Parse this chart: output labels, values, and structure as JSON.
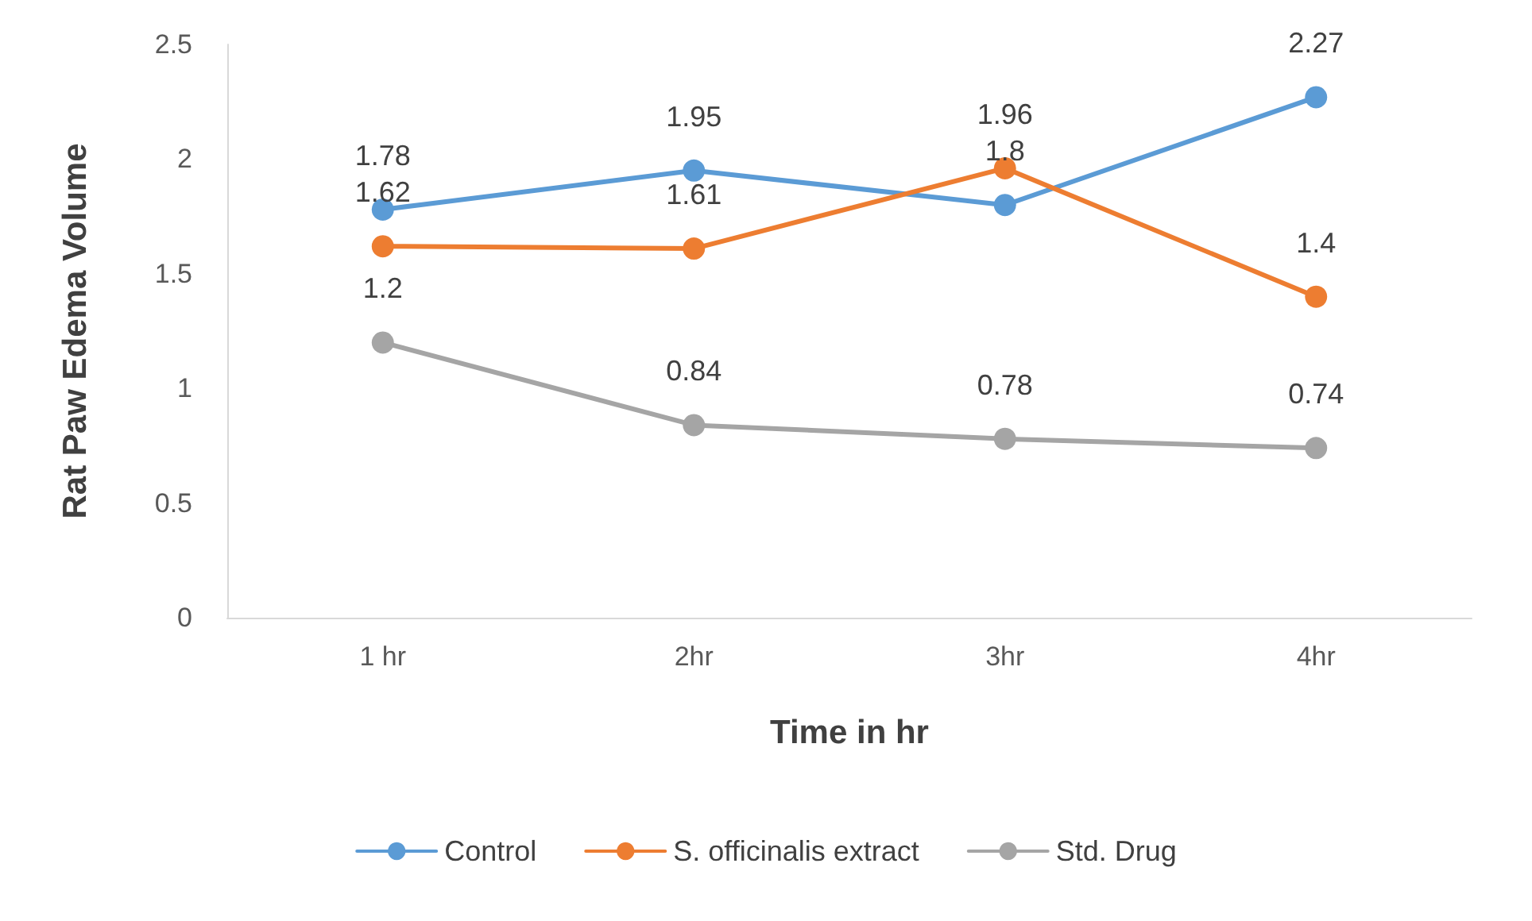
{
  "chart_data": {
    "type": "line",
    "xlabel": "Time in hr",
    "ylabel": "Rat Paw Edema Volume",
    "categories": [
      "1 hr",
      "2hr",
      "3hr",
      "4hr"
    ],
    "series": [
      {
        "name": "Control",
        "color": "#5b9bd5",
        "values": [
          1.78,
          1.95,
          1.8,
          2.27
        ]
      },
      {
        "name": "S. officinalis extract",
        "color": "#ed7d31",
        "values": [
          1.62,
          1.61,
          1.96,
          1.4
        ]
      },
      {
        "name": "Std. Drug",
        "color": "#a5a5a5",
        "values": [
          1.2,
          0.84,
          0.78,
          0.74
        ]
      }
    ],
    "ylim": [
      0,
      2.5
    ],
    "yticks": [
      0,
      0.5,
      1,
      1.5,
      2,
      2.5
    ],
    "grid": false,
    "legend": "bottom",
    "marker": "circle",
    "line_style": "solid",
    "data_labels": true
  }
}
